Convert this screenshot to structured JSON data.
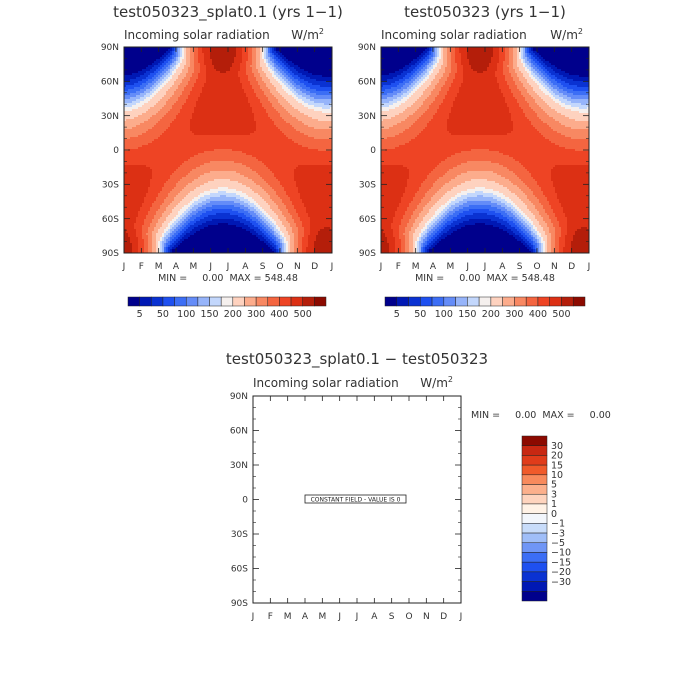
{
  "chart_data": [
    {
      "type": "heatmap",
      "title": "test050323_splat0.1 (yrs 1−1)",
      "subtitle_left": "Incoming solar radiation",
      "subtitle_right": "W/m",
      "subtitle_right_sup": "2",
      "x_ticks": [
        "J",
        "F",
        "M",
        "A",
        "M",
        "J",
        "J",
        "A",
        "S",
        "O",
        "N",
        "D",
        "J"
      ],
      "y_ticks": [
        "90N",
        "60N",
        "30N",
        "0",
        "30S",
        "60S",
        "90S"
      ],
      "y_values": [
        90,
        60,
        30,
        0,
        -30,
        -60,
        -90
      ],
      "min_max_text": "MIN =     0.00  MAX = 548.48",
      "colorbar_labels": [
        "5",
        "50",
        "100",
        "150",
        "200",
        "300",
        "400",
        "500"
      ],
      "levels": [
        0,
        5,
        25,
        50,
        75,
        100,
        125,
        150,
        175,
        200,
        250,
        300,
        350,
        400,
        450,
        500,
        550
      ],
      "min": 0.0,
      "max": 548.48
    },
    {
      "type": "heatmap",
      "title": "test050323 (yrs 1−1)",
      "subtitle_left": "Incoming solar radiation",
      "subtitle_right": "W/m",
      "subtitle_right_sup": "2",
      "x_ticks": [
        "J",
        "F",
        "M",
        "A",
        "M",
        "J",
        "J",
        "A",
        "S",
        "O",
        "N",
        "D",
        "J"
      ],
      "y_ticks": [
        "90N",
        "60N",
        "30N",
        "0",
        "30S",
        "60S",
        "90S"
      ],
      "y_values": [
        90,
        60,
        30,
        0,
        -30,
        -60,
        -90
      ],
      "min_max_text": "MIN =     0.00  MAX = 548.48",
      "colorbar_labels": [
        "5",
        "50",
        "100",
        "150",
        "200",
        "300",
        "400",
        "500"
      ],
      "levels": [
        0,
        5,
        25,
        50,
        75,
        100,
        125,
        150,
        175,
        200,
        250,
        300,
        350,
        400,
        450,
        500,
        550
      ],
      "min": 0.0,
      "max": 548.48
    },
    {
      "type": "heatmap",
      "title": "test050323_splat0.1 − test050323",
      "subtitle_left": "Incoming solar radiation",
      "subtitle_right": "W/m",
      "subtitle_right_sup": "2",
      "x_ticks": [
        "J",
        "F",
        "M",
        "A",
        "M",
        "J",
        "J",
        "A",
        "S",
        "O",
        "N",
        "D",
        "J"
      ],
      "y_ticks": [
        "90N",
        "60N",
        "30N",
        "0",
        "30S",
        "60S",
        "90S"
      ],
      "y_values": [
        90,
        60,
        30,
        0,
        -30,
        -60,
        -90
      ],
      "min_max_text": "MIN =     0.00  MAX =     0.00",
      "constant_field_label": "CONSTANT FIELD - VALUE IS 0",
      "colorbar_labels": [
        "30",
        "20",
        "15",
        "10",
        "5",
        "3",
        "1",
        "0",
        "−1",
        "−3",
        "−5",
        "−10",
        "−15",
        "−20",
        "−30"
      ],
      "min": 0.0,
      "max": 0.0
    }
  ],
  "colors": {
    "palette": [
      "#00008c",
      "#0018b4",
      "#0a32d2",
      "#1e50f0",
      "#3c6ef5",
      "#648cf8",
      "#96b4fa",
      "#c3d7fc",
      "#f5f0ee",
      "#fed2bf",
      "#fcac8c",
      "#f88862",
      "#f46540",
      "#ee4424",
      "#dc3014",
      "#b41e0a",
      "#8c0a00"
    ],
    "diff_palette": [
      "#8c0a00",
      "#c82812",
      "#e03c1a",
      "#f05a2a",
      "#f88a5c",
      "#fcb08c",
      "#fed4be",
      "#fff2e6",
      "#f2f6fc",
      "#c8dcfa",
      "#a0bef8",
      "#7096f6",
      "#3c6ef5",
      "#1e50f0",
      "#0a32d2",
      "#0018b4",
      "#00008c"
    ]
  }
}
